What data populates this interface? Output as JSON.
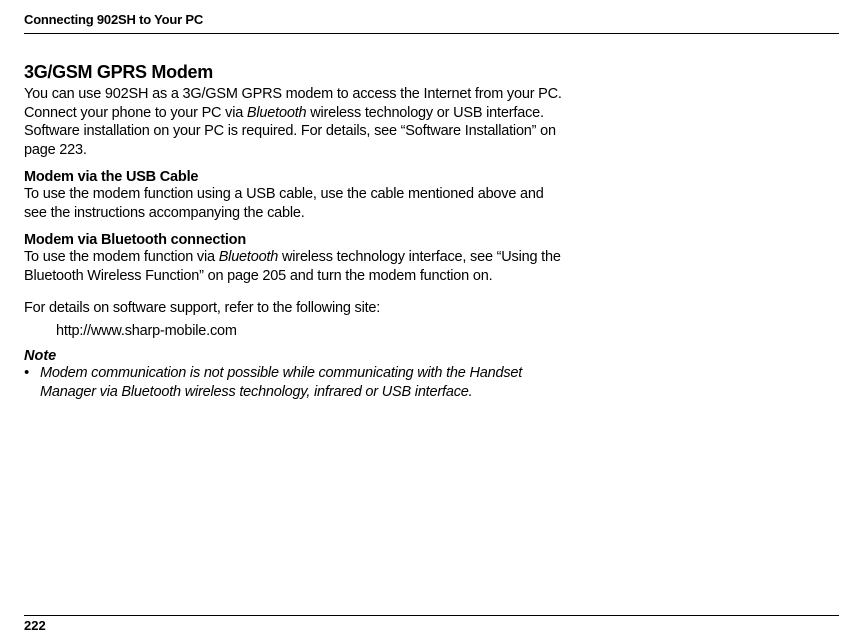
{
  "page": {
    "header": "Connecting 902SH to Your PC",
    "number": "222"
  },
  "section": {
    "title": "3G/GSM GPRS Modem",
    "intro_a": "You can use 902SH as a 3G/GSM GPRS modem to access the Internet from your PC. Connect your phone to your PC via ",
    "intro_b_ital": "Bluetooth",
    "intro_c": " wireless technology or USB interface. Software installation on your PC is required. For details, see “Software Installation” on page 223.",
    "usb": {
      "title": "Modem via the USB Cable",
      "body": "To use the modem function using a USB cable, use the cable mentioned above and see the instructions accompanying the cable."
    },
    "bt": {
      "title": "Modem via Bluetooth connection",
      "body_a": "To use the modem function via ",
      "body_b_ital": "Bluetooth",
      "body_c": " wireless technology interface, see “Using the Bluetooth Wireless Function” on page 205 and turn the modem function on."
    },
    "support": {
      "lead": "For details on software support, refer to the following site:",
      "url": "http://www.sharp-mobile.com"
    },
    "note": {
      "title": "Note",
      "bullet": "•",
      "body": "Modem communication is not possible while communicating with the Handset Manager via Bluetooth wireless technology, infrared or USB interface."
    }
  },
  "style": {
    "text_color": "#000000",
    "background_color": "#ffffff",
    "h2_fontsize": 18,
    "body_fontsize": 14.5,
    "header_fontsize": 13,
    "line_height": 1.28,
    "content_max_width": 540,
    "font_family": "Arial, Helvetica, sans-serif",
    "font_stretch": "condensed"
  }
}
